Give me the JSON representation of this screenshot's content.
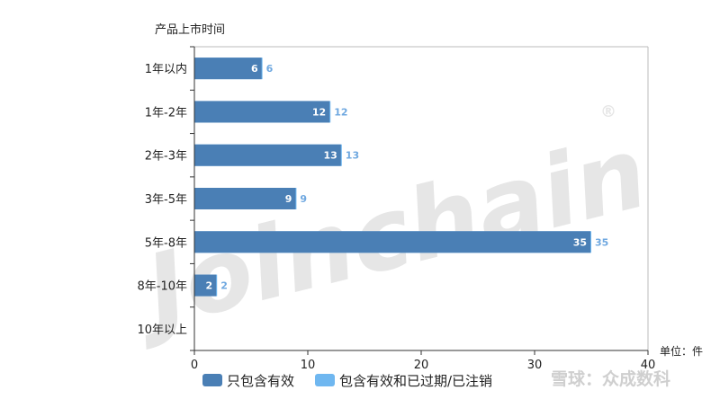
{
  "chart_data": {
    "type": "bar",
    "orientation": "horizontal",
    "ylabel": "产品上市时间",
    "unit_label": "单位：件",
    "categories": [
      "1年以内",
      "1年-2年",
      "2年-3年",
      "3年-5年",
      "5年-8年",
      "8年-10年",
      "10年以上"
    ],
    "series": [
      {
        "name": "只包含有效",
        "values": [
          6,
          12,
          13,
          9,
          35,
          2,
          0
        ],
        "color": "#4a7fb5"
      },
      {
        "name": "包含有效和已过期/已注销",
        "values": [
          6,
          12,
          13,
          9,
          35,
          2,
          0
        ],
        "color": "#6fb7f0"
      }
    ],
    "xlim": [
      0,
      40
    ],
    "xticks": [
      0,
      10,
      20,
      30,
      40
    ],
    "legend_position": "bottom",
    "grid": false
  },
  "watermark": "Joinchain",
  "watermark_mark": "®",
  "footer_logo": "雪球：众成数科"
}
